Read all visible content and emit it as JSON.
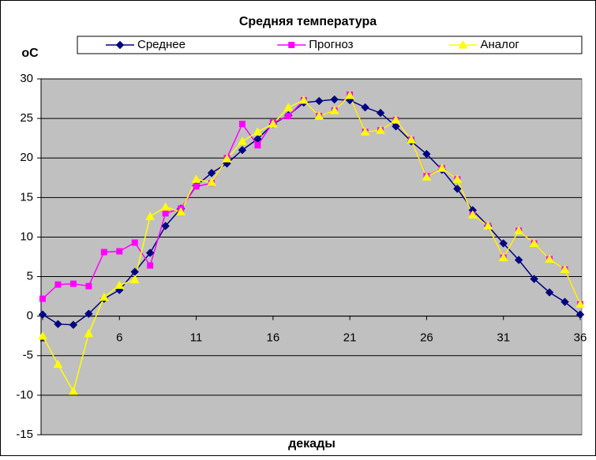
{
  "chart_data": {
    "type": "line",
    "title": "Средняя температура",
    "y_label": "оС",
    "x_label": "декады",
    "x": [
      1,
      2,
      3,
      4,
      5,
      6,
      7,
      8,
      9,
      10,
      11,
      12,
      13,
      14,
      15,
      16,
      17,
      18,
      19,
      20,
      21,
      22,
      23,
      24,
      25,
      26,
      27,
      28,
      29,
      30,
      31,
      32,
      33,
      34,
      35,
      36
    ],
    "xlim": [
      1,
      36
    ],
    "xticks": [
      1,
      6,
      11,
      16,
      21,
      26,
      31,
      36
    ],
    "ylim": [
      -15,
      30
    ],
    "yticks": [
      -15,
      -10,
      -5,
      0,
      5,
      10,
      15,
      20,
      25,
      30
    ],
    "grid": true,
    "legend": "top",
    "series": [
      {
        "name": "Среднее",
        "color": "#000080",
        "marker": "diamond",
        "values": [
          0.2,
          -1.0,
          -1.1,
          0.3,
          2.2,
          3.3,
          5.6,
          8.0,
          11.4,
          13.6,
          16.5,
          18.1,
          19.3,
          21.0,
          22.4,
          24.3,
          25.4,
          27.0,
          27.2,
          27.4,
          27.3,
          26.4,
          25.7,
          24.0,
          22.1,
          20.5,
          18.5,
          16.1,
          13.4,
          11.4,
          9.2,
          7.1,
          4.7,
          3.0,
          1.8,
          0.2
        ]
      },
      {
        "name": "Прогноз",
        "color": "#ff00ff",
        "marker": "square",
        "values": [
          2.2,
          4.0,
          4.1,
          3.8,
          8.1,
          8.2,
          9.3,
          6.4,
          13.0,
          13.6,
          16.4,
          16.8,
          20.0,
          24.3,
          21.6,
          24.5,
          25.3,
          27.3,
          25.3,
          26.0,
          28.0,
          23.3,
          23.5,
          24.8,
          22.3,
          17.7,
          18.7,
          17.3,
          12.8,
          11.4,
          7.4,
          10.8,
          9.2,
          7.2,
          5.9,
          1.5
        ]
      },
      {
        "name": "Аналог",
        "color": "#ffff00",
        "marker": "triangle",
        "values": [
          -2.5,
          -6.1,
          -9.5,
          -2.2,
          2.4,
          3.9,
          4.6,
          12.6,
          13.8,
          13.2,
          17.3,
          16.9,
          19.9,
          22.1,
          23.3,
          24.3,
          26.4,
          27.3,
          25.3,
          26.0,
          27.9,
          23.3,
          23.5,
          24.8,
          22.3,
          17.6,
          18.7,
          17.3,
          12.8,
          11.4,
          7.4,
          10.8,
          9.2,
          7.2,
          5.9,
          1.5
        ]
      }
    ]
  }
}
